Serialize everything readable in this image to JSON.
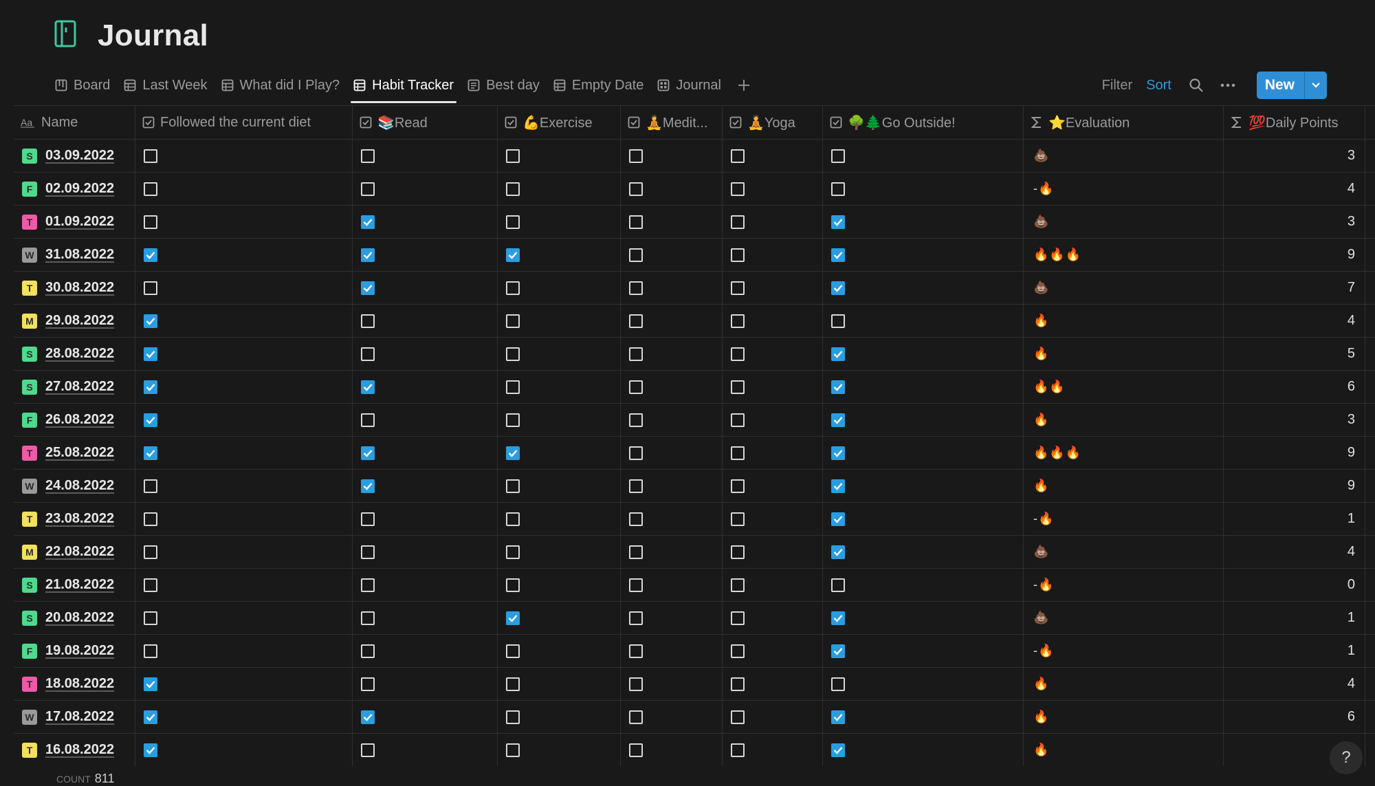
{
  "page": {
    "title": "Journal"
  },
  "tabs": [
    {
      "label": "Board",
      "icon": "board-icon"
    },
    {
      "label": "Last Week",
      "icon": "table-icon"
    },
    {
      "label": "What did I Play?",
      "icon": "table-icon"
    },
    {
      "label": "Habit Tracker",
      "icon": "table-icon",
      "active": true
    },
    {
      "label": "Best day",
      "icon": "list-icon"
    },
    {
      "label": "Empty Date",
      "icon": "table-icon"
    },
    {
      "label": "Journal",
      "icon": "gallery-icon"
    }
  ],
  "toolbar": {
    "filter": "Filter",
    "sort": "Sort",
    "new": "New"
  },
  "columns": [
    {
      "label": "Name",
      "type": "title"
    },
    {
      "label": "Followed the current diet",
      "type": "checkbox"
    },
    {
      "label": "📚Read",
      "type": "checkbox"
    },
    {
      "label": "💪Exercise",
      "type": "checkbox"
    },
    {
      "label": "🧘Medit...",
      "type": "checkbox"
    },
    {
      "label": "🧘Yoga",
      "type": "checkbox"
    },
    {
      "label": "🌳🌲Go Outside!",
      "type": "checkbox"
    },
    {
      "label": "⭐Evaluation",
      "type": "formula"
    },
    {
      "label": "💯Daily Points",
      "type": "formula"
    }
  ],
  "colors": {
    "accent": "#2f8fd6",
    "checkbox_on": "#2a9de0",
    "sort": "#2e9bd6"
  },
  "rows": [
    {
      "day": "S",
      "dayColor": "#4fd98e",
      "date": "03.09.2022",
      "checks": [
        false,
        false,
        false,
        false,
        false,
        false
      ],
      "evaluation": "💩",
      "points": "3"
    },
    {
      "day": "F",
      "dayColor": "#4fd98e",
      "date": "02.09.2022",
      "checks": [
        false,
        false,
        false,
        false,
        false,
        false
      ],
      "evaluation": "-🔥",
      "points": "4"
    },
    {
      "day": "T",
      "dayColor": "#ef5aa7",
      "date": "01.09.2022",
      "checks": [
        false,
        true,
        false,
        false,
        false,
        true
      ],
      "evaluation": "💩",
      "points": "3"
    },
    {
      "day": "W",
      "dayColor": "#9a9a9a",
      "date": "31.08.2022",
      "checks": [
        true,
        true,
        true,
        false,
        false,
        true
      ],
      "evaluation": "🔥🔥🔥",
      "points": "9"
    },
    {
      "day": "T",
      "dayColor": "#f2e15a",
      "date": "30.08.2022",
      "checks": [
        false,
        true,
        false,
        false,
        false,
        true
      ],
      "evaluation": "💩",
      "points": "7"
    },
    {
      "day": "M",
      "dayColor": "#f2e15a",
      "date": "29.08.2022",
      "checks": [
        true,
        false,
        false,
        false,
        false,
        false
      ],
      "evaluation": "🔥",
      "points": "4"
    },
    {
      "day": "S",
      "dayColor": "#4fd98e",
      "date": "28.08.2022",
      "checks": [
        true,
        false,
        false,
        false,
        false,
        true
      ],
      "evaluation": "🔥",
      "points": "5"
    },
    {
      "day": "S",
      "dayColor": "#4fd98e",
      "date": "27.08.2022",
      "checks": [
        true,
        true,
        false,
        false,
        false,
        true
      ],
      "evaluation": "🔥🔥",
      "points": "6"
    },
    {
      "day": "F",
      "dayColor": "#4fd98e",
      "date": "26.08.2022",
      "checks": [
        true,
        false,
        false,
        false,
        false,
        true
      ],
      "evaluation": "🔥",
      "points": "3"
    },
    {
      "day": "T",
      "dayColor": "#ef5aa7",
      "date": "25.08.2022",
      "checks": [
        true,
        true,
        true,
        false,
        false,
        true
      ],
      "evaluation": "🔥🔥🔥",
      "points": "9"
    },
    {
      "day": "W",
      "dayColor": "#9a9a9a",
      "date": "24.08.2022",
      "checks": [
        false,
        true,
        false,
        false,
        false,
        true
      ],
      "evaluation": "🔥",
      "points": "9"
    },
    {
      "day": "T",
      "dayColor": "#f2e15a",
      "date": "23.08.2022",
      "checks": [
        false,
        false,
        false,
        false,
        false,
        true
      ],
      "evaluation": "-🔥",
      "points": "1"
    },
    {
      "day": "M",
      "dayColor": "#f2e15a",
      "date": "22.08.2022",
      "checks": [
        false,
        false,
        false,
        false,
        false,
        true
      ],
      "evaluation": "💩",
      "points": "4"
    },
    {
      "day": "S",
      "dayColor": "#4fd98e",
      "date": "21.08.2022",
      "checks": [
        false,
        false,
        false,
        false,
        false,
        false
      ],
      "evaluation": "-🔥",
      "points": "0"
    },
    {
      "day": "S",
      "dayColor": "#4fd98e",
      "date": "20.08.2022",
      "checks": [
        false,
        false,
        true,
        false,
        false,
        true
      ],
      "evaluation": "💩",
      "points": "1"
    },
    {
      "day": "F",
      "dayColor": "#4fd98e",
      "date": "19.08.2022",
      "checks": [
        false,
        false,
        false,
        false,
        false,
        true
      ],
      "evaluation": "-🔥",
      "points": "1"
    },
    {
      "day": "T",
      "dayColor": "#ef5aa7",
      "date": "18.08.2022",
      "checks": [
        true,
        false,
        false,
        false,
        false,
        false
      ],
      "evaluation": "🔥",
      "points": "4"
    },
    {
      "day": "W",
      "dayColor": "#9a9a9a",
      "date": "17.08.2022",
      "checks": [
        true,
        true,
        false,
        false,
        false,
        true
      ],
      "evaluation": "🔥",
      "points": "6"
    },
    {
      "day": "T",
      "dayColor": "#f2e15a",
      "date": "16.08.2022",
      "checks": [
        true,
        false,
        false,
        false,
        false,
        true
      ],
      "evaluation": "🔥",
      "points": ""
    }
  ],
  "footer": {
    "count_label": "COUNT",
    "count_value": "811"
  },
  "help": {
    "label": "?"
  }
}
